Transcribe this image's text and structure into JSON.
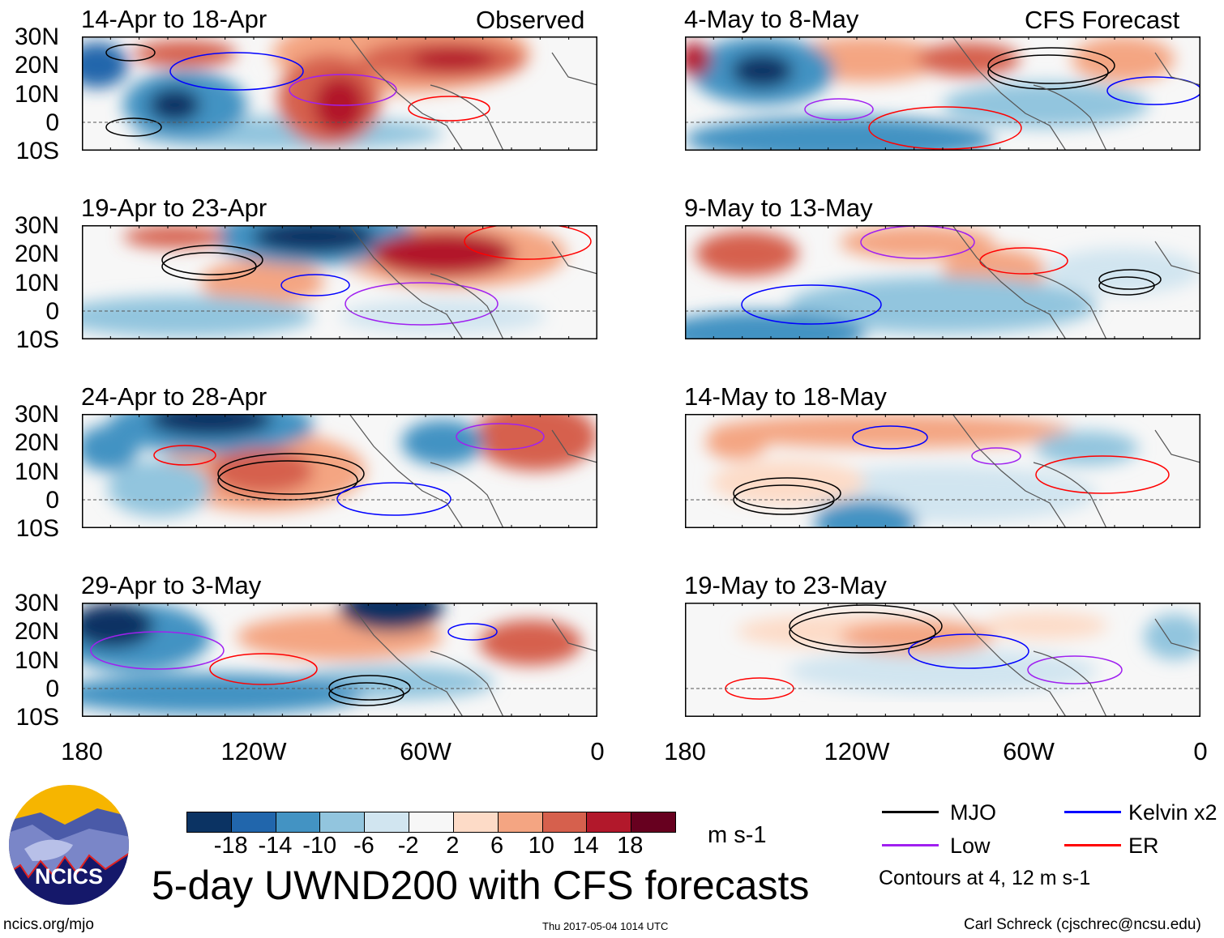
{
  "panels": {
    "observed_label": "Observed",
    "forecast_label": "CFS Forecast",
    "left": [
      {
        "title": "14-Apr to 18-Apr"
      },
      {
        "title": "19-Apr to 23-Apr"
      },
      {
        "title": "24-Apr to 28-Apr"
      },
      {
        "title": "29-Apr to 3-May"
      }
    ],
    "right": [
      {
        "title": "4-May to 8-May"
      },
      {
        "title": "9-May to 13-May"
      },
      {
        "title": "14-May to 18-May"
      },
      {
        "title": "19-May to 23-May"
      }
    ]
  },
  "axes": {
    "lat_labels": [
      "30N",
      "20N",
      "10N",
      "0",
      "10S"
    ],
    "lon_labels": [
      "180",
      "120W",
      "60W",
      "0"
    ]
  },
  "colorbar": {
    "colors": [
      "#0b3363",
      "#2166ac",
      "#4393c3",
      "#92c5de",
      "#d1e5f0",
      "#f7f7f7",
      "#fddbc7",
      "#f4a582",
      "#d6604d",
      "#b2182b",
      "#67001f"
    ],
    "labels": [
      "-18",
      "-14",
      "-10",
      "-6",
      "-2",
      "2",
      "6",
      "10",
      "14",
      "18"
    ],
    "units": "m s-1"
  },
  "legend": {
    "items": [
      {
        "label": "MJO",
        "color": "#000000"
      },
      {
        "label": "Kelvin x2",
        "color": "#0000ff"
      },
      {
        "label": "Low",
        "color": "#a020f0"
      },
      {
        "label": "ER",
        "color": "#ff0000"
      }
    ],
    "contours_note": "Contours at 4, 12 m s-1"
  },
  "title": "5-day UWND200 with CFS forecasts",
  "logo_text": "NCICS",
  "footer": {
    "url": "ncics.org/mjo",
    "timestamp": "Thu 2017-05-04 1014 UTC",
    "author": "Carl Schreck (cjschrec@ncsu.edu)"
  }
}
